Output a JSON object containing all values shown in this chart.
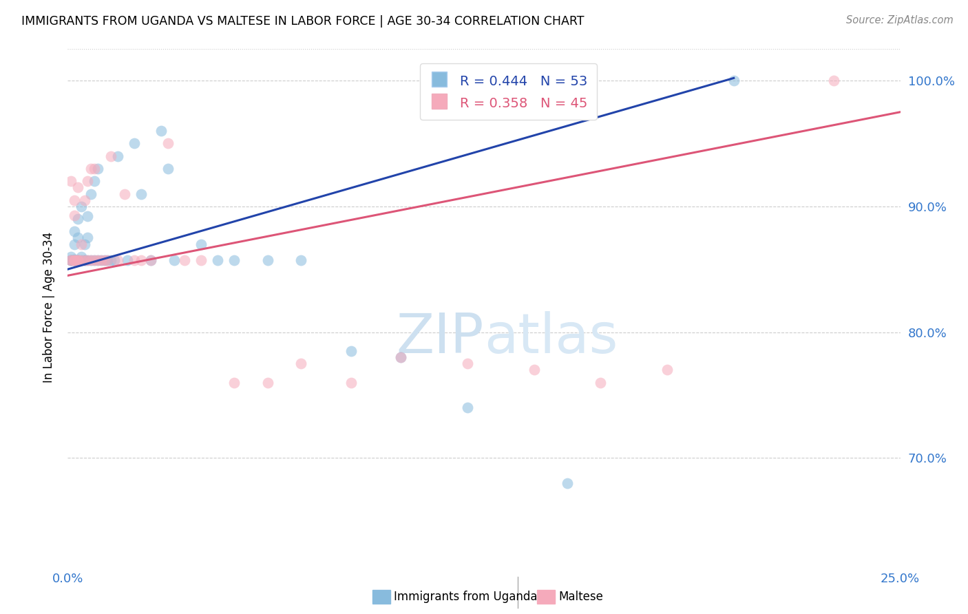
{
  "title": "IMMIGRANTS FROM UGANDA VS MALTESE IN LABOR FORCE | AGE 30-34 CORRELATION CHART",
  "source": "Source: ZipAtlas.com",
  "ylabel": "In Labor Force | Age 30-34",
  "r_uganda": 0.444,
  "n_uganda": 53,
  "r_maltese": 0.358,
  "n_maltese": 45,
  "color_uganda": "#88bbdd",
  "color_maltese": "#f5aabb",
  "color_uganda_line": "#2244aa",
  "color_maltese_line": "#dd5577",
  "legend_label_uganda": "Immigrants from Uganda",
  "legend_label_maltese": "Maltese",
  "xlim": [
    0.0,
    0.25
  ],
  "ylim": [
    0.615,
    1.025
  ],
  "yticks": [
    0.7,
    0.8,
    0.9,
    1.0
  ],
  "ytick_labels": [
    "70.0%",
    "80.0%",
    "90.0%",
    "100.0%"
  ],
  "xtick_labels_show": [
    "0.0%",
    "25.0%"
  ],
  "uganda_x": [
    0.001,
    0.001,
    0.001,
    0.001,
    0.002,
    0.002,
    0.002,
    0.002,
    0.002,
    0.002,
    0.003,
    0.003,
    0.003,
    0.003,
    0.003,
    0.004,
    0.004,
    0.004,
    0.005,
    0.005,
    0.005,
    0.006,
    0.006,
    0.006,
    0.007,
    0.007,
    0.008,
    0.008,
    0.009,
    0.009,
    0.01,
    0.011,
    0.012,
    0.013,
    0.014,
    0.015,
    0.018,
    0.02,
    0.022,
    0.025,
    0.028,
    0.03,
    0.032,
    0.04,
    0.045,
    0.05,
    0.06,
    0.07,
    0.085,
    0.1,
    0.12,
    0.15,
    0.2
  ],
  "uganda_y": [
    0.857,
    0.857,
    0.857,
    0.86,
    0.857,
    0.857,
    0.857,
    0.858,
    0.87,
    0.88,
    0.857,
    0.857,
    0.857,
    0.875,
    0.89,
    0.857,
    0.86,
    0.9,
    0.857,
    0.857,
    0.87,
    0.857,
    0.875,
    0.892,
    0.857,
    0.91,
    0.857,
    0.92,
    0.857,
    0.93,
    0.857,
    0.857,
    0.857,
    0.857,
    0.857,
    0.94,
    0.857,
    0.95,
    0.91,
    0.857,
    0.96,
    0.93,
    0.857,
    0.87,
    0.857,
    0.857,
    0.857,
    0.857,
    0.785,
    0.78,
    0.74,
    0.68,
    1.0
  ],
  "maltese_x": [
    0.001,
    0.001,
    0.001,
    0.002,
    0.002,
    0.002,
    0.002,
    0.002,
    0.003,
    0.003,
    0.003,
    0.003,
    0.004,
    0.004,
    0.005,
    0.005,
    0.006,
    0.006,
    0.007,
    0.007,
    0.008,
    0.008,
    0.009,
    0.01,
    0.011,
    0.012,
    0.013,
    0.015,
    0.017,
    0.02,
    0.022,
    0.025,
    0.03,
    0.035,
    0.04,
    0.05,
    0.06,
    0.07,
    0.085,
    0.1,
    0.12,
    0.14,
    0.16,
    0.18,
    0.23
  ],
  "maltese_y": [
    0.857,
    0.857,
    0.92,
    0.857,
    0.857,
    0.857,
    0.893,
    0.905,
    0.857,
    0.857,
    0.857,
    0.915,
    0.857,
    0.87,
    0.857,
    0.905,
    0.857,
    0.92,
    0.857,
    0.93,
    0.857,
    0.93,
    0.857,
    0.857,
    0.857,
    0.857,
    0.94,
    0.857,
    0.91,
    0.857,
    0.857,
    0.857,
    0.95,
    0.857,
    0.857,
    0.76,
    0.76,
    0.775,
    0.76,
    0.78,
    0.775,
    0.77,
    0.76,
    0.77,
    1.0
  ],
  "line_uganda_x0": 0.0,
  "line_uganda_x1": 0.2,
  "line_uganda_y0": 0.85,
  "line_uganda_y1": 1.002,
  "line_maltese_x0": 0.0,
  "line_maltese_x1": 0.25,
  "line_maltese_y0": 0.845,
  "line_maltese_y1": 0.975
}
